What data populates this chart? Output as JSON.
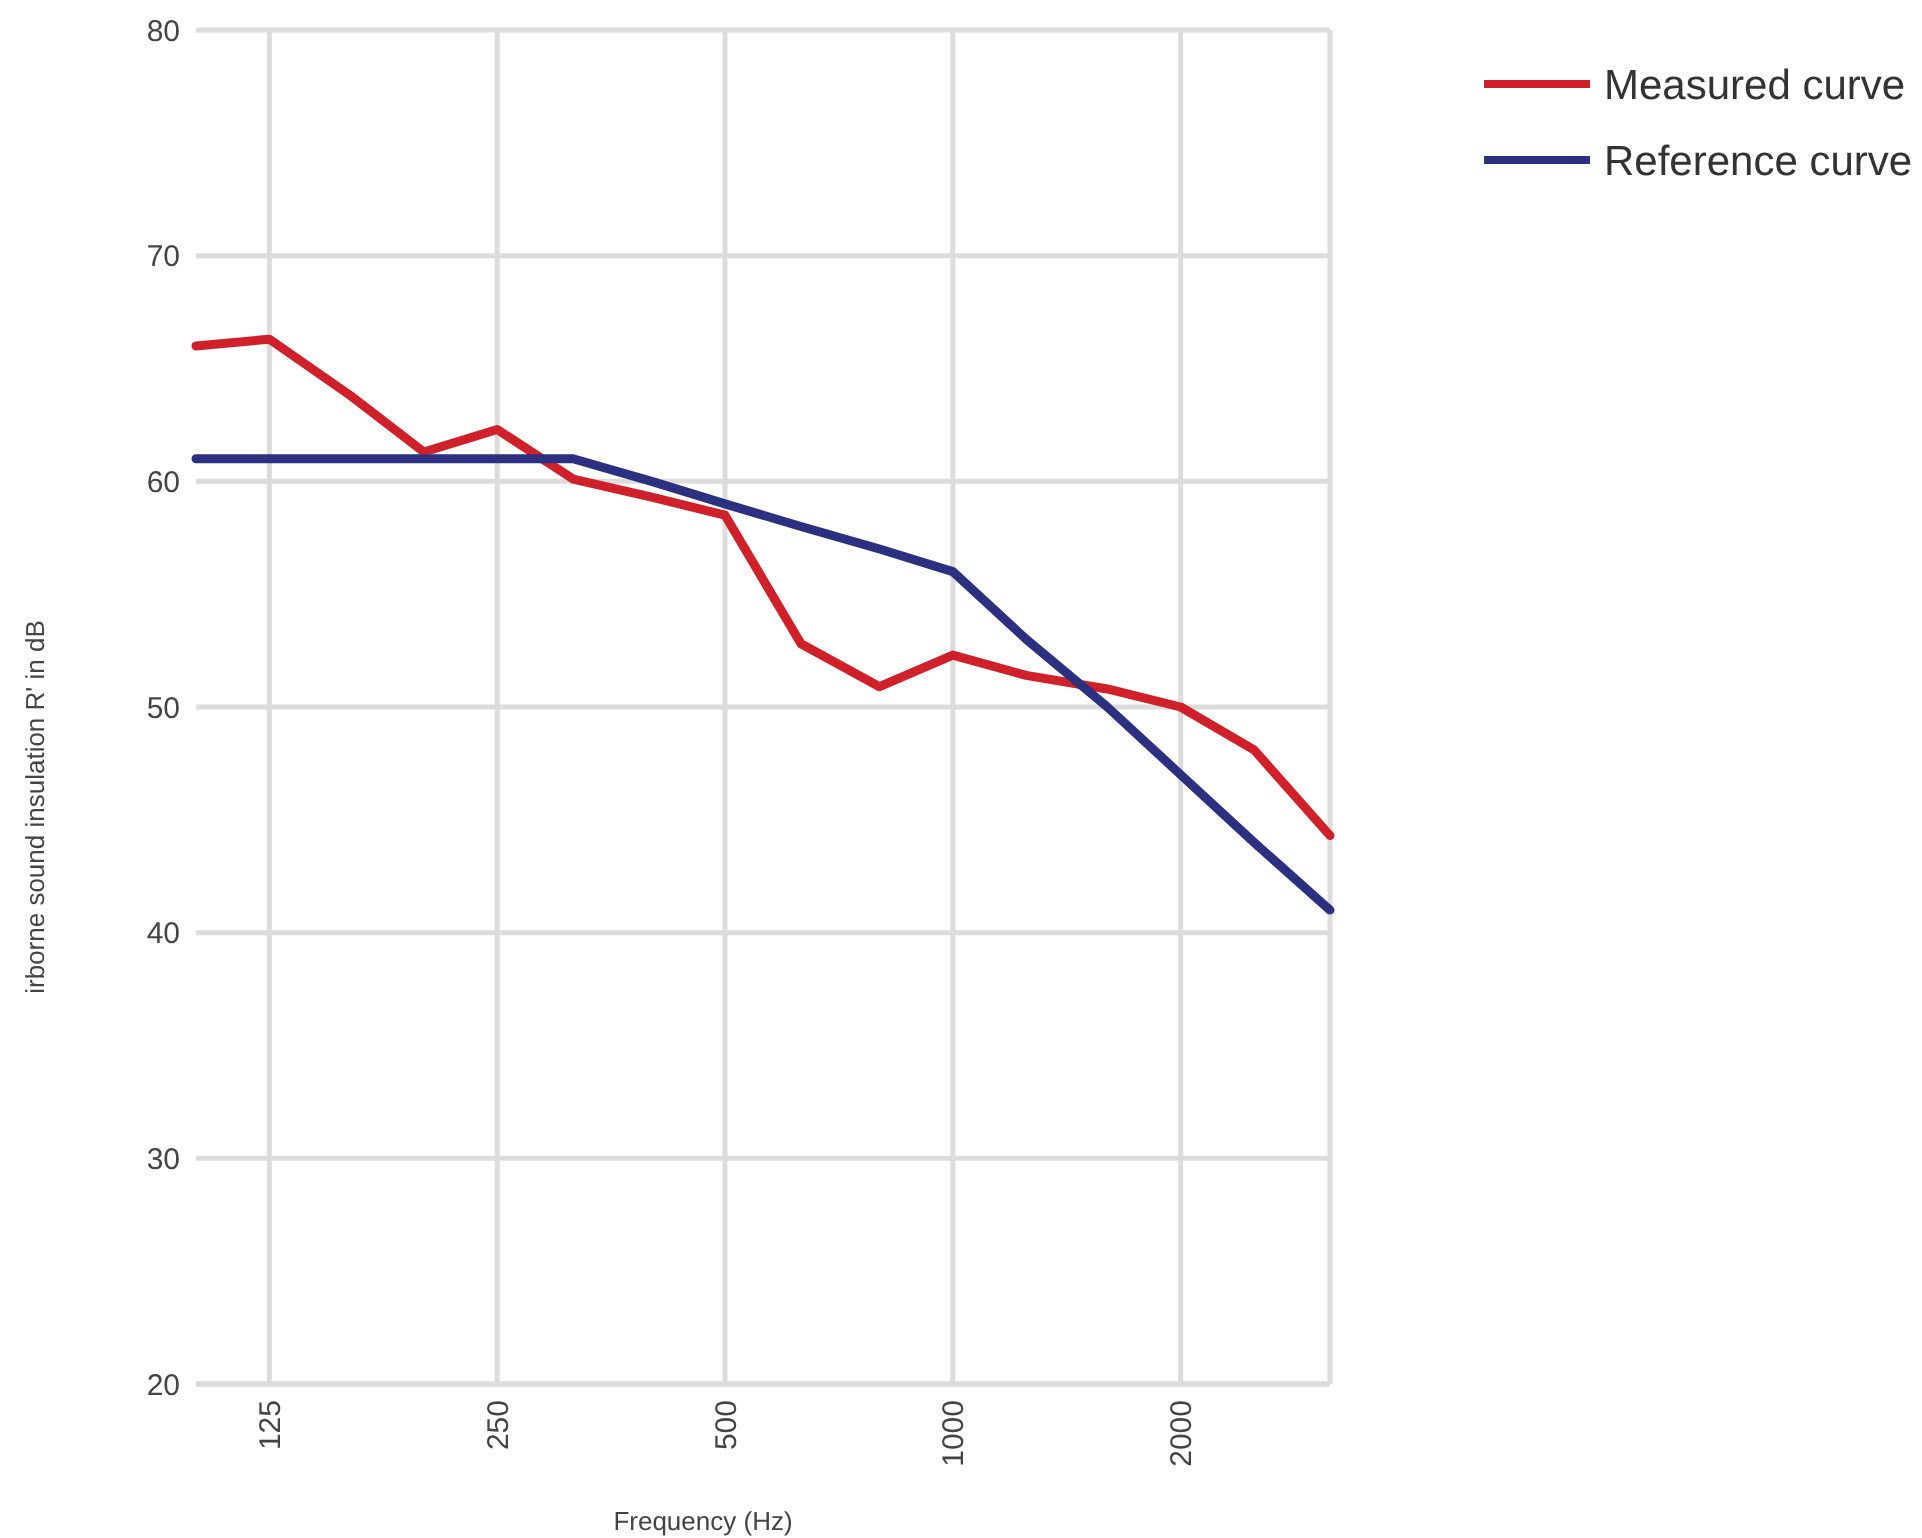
{
  "chart_data": {
    "type": "line",
    "xlabel": "Frequency (Hz)",
    "ylabel": "irborne sound insulation R' in dB",
    "x": [
      100,
      125,
      160,
      200,
      250,
      315,
      400,
      500,
      630,
      800,
      1000,
      1250,
      1600,
      2000,
      2500,
      3150
    ],
    "series": [
      {
        "name": "Measured curve",
        "color": "#d0202a",
        "values": [
          66,
          66.3,
          63.8,
          61.3,
          62.3,
          60.1,
          59.3,
          58.5,
          52.8,
          50.9,
          52.3,
          51.4,
          50.8,
          50,
          48.1,
          44.3
        ]
      },
      {
        "name": "Reference curve",
        "color": "#2b3080",
        "values": [
          61,
          61,
          61,
          61,
          61,
          61,
          60,
          59,
          58,
          57,
          56,
          53,
          50,
          47,
          44,
          41
        ]
      }
    ],
    "log": "x",
    "xlim": [
      100,
      3150
    ],
    "xticks": [
      125,
      250,
      500,
      1000,
      2000
    ],
    "ylim": [
      20,
      80
    ],
    "yticks": [
      20,
      30,
      40,
      50,
      60,
      70,
      80
    ],
    "grid": true,
    "legend": "top right",
    "marker": "none",
    "line_style": "solid"
  }
}
